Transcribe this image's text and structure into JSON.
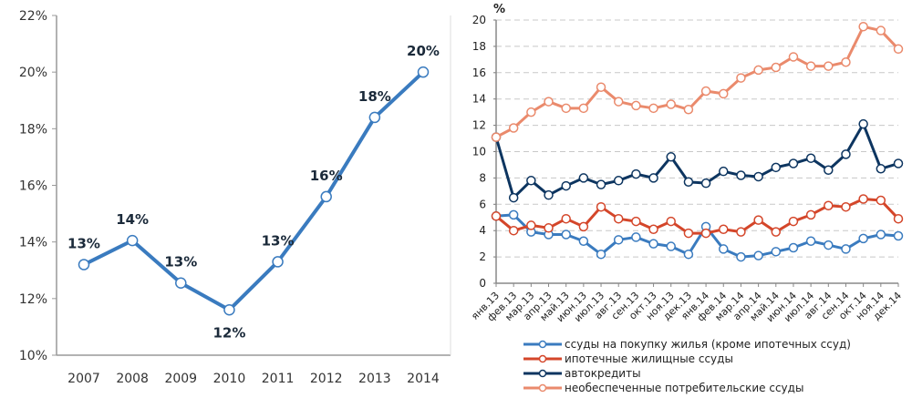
{
  "chart_data": [
    {
      "type": "line",
      "title": "",
      "xlabel": "",
      "ylabel": "",
      "categories": [
        "2007",
        "2008",
        "2009",
        "2010",
        "2011",
        "2012",
        "2013",
        "2014"
      ],
      "ylim": [
        10,
        22
      ],
      "yticks": [
        "10%",
        "12%",
        "14%",
        "16%",
        "18%",
        "20%",
        "22%"
      ],
      "ytick_values": [
        10,
        12,
        14,
        16,
        18,
        20,
        22
      ],
      "grid": false,
      "series": [
        {
          "values": [
            13.2,
            14.05,
            12.55,
            11.6,
            13.3,
            15.6,
            18.4,
            20.0
          ],
          "data_labels": [
            "13%",
            "14%",
            "13%",
            "12%",
            "13%",
            "16%",
            "18%",
            "20%"
          ],
          "color": "#3a7bbf"
        }
      ]
    },
    {
      "type": "line",
      "title": "",
      "ylabel": "%",
      "xlabel": "",
      "categories": [
        "янв.13",
        "фев.13",
        "мар.13",
        "апр.13",
        "май.13",
        "июн.13",
        "июл.13",
        "авг.13",
        "сен.13",
        "окт.13",
        "ноя.13",
        "дек.13",
        "янв.14",
        "фев.14",
        "мар.14",
        "апр.14",
        "май.14",
        "июн.14",
        "июл.14",
        "авг.14",
        "сен.14",
        "окт.14",
        "ноя.14",
        "дек.14"
      ],
      "ylim": [
        0,
        20
      ],
      "yticks": [
        "0",
        "2",
        "4",
        "6",
        "8",
        "10",
        "12",
        "14",
        "16",
        "18",
        "20"
      ],
      "ytick_values": [
        0,
        2,
        4,
        6,
        8,
        10,
        12,
        14,
        16,
        18,
        20
      ],
      "grid": true,
      "legend_position": "bottom",
      "series": [
        {
          "name": "ссуды на покупку жилья (кроме ипотечных ссуд)",
          "color": "#3a7bbf",
          "values": [
            5.1,
            5.2,
            3.9,
            3.7,
            3.7,
            3.2,
            2.2,
            3.3,
            3.5,
            3.0,
            2.8,
            2.2,
            4.3,
            2.6,
            2.0,
            2.1,
            2.4,
            2.7,
            3.2,
            2.9,
            2.6,
            3.4,
            3.7,
            3.6
          ]
        },
        {
          "name": "ипотечные жилищные ссуды",
          "color": "#d4462a",
          "values": [
            5.1,
            4.0,
            4.4,
            4.2,
            4.9,
            4.3,
            5.8,
            4.9,
            4.7,
            4.1,
            4.7,
            3.8,
            3.8,
            4.1,
            3.9,
            4.8,
            3.9,
            4.7,
            5.2,
            5.9,
            5.8,
            6.4,
            6.3,
            4.9
          ]
        },
        {
          "name": "автокредиты",
          "color": "#0d3560",
          "values": [
            11.1,
            6.5,
            7.8,
            6.7,
            7.4,
            8.0,
            7.5,
            7.8,
            8.3,
            8.0,
            9.6,
            7.7,
            7.6,
            8.5,
            8.2,
            8.1,
            8.8,
            9.1,
            9.5,
            8.6,
            9.8,
            12.1,
            8.7,
            9.1
          ]
        },
        {
          "name": "необеспеченные потребительские ссуды",
          "color": "#ea8a6c",
          "values": [
            11.1,
            11.8,
            13.0,
            13.8,
            13.3,
            13.3,
            14.9,
            13.8,
            13.5,
            13.3,
            13.6,
            13.2,
            14.6,
            14.4,
            15.6,
            16.2,
            16.4,
            17.2,
            16.5,
            16.5,
            16.8,
            19.5,
            19.2,
            17.8
          ]
        }
      ]
    }
  ]
}
